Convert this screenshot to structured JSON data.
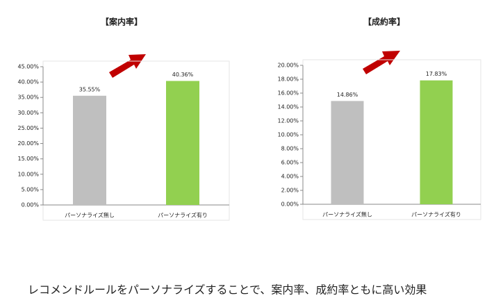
{
  "chart_data": [
    {
      "type": "bar",
      "title": "【案内率】",
      "categories": [
        "パーソナライズ無し",
        "パーソナライズ有り"
      ],
      "values": [
        35.55,
        40.36
      ],
      "value_labels": [
        "35.55%",
        "40.36%"
      ],
      "colors": [
        "#bfbfbf",
        "#92d050"
      ],
      "ylim": [
        0,
        45
      ],
      "yticks": [
        {
          "value": 0,
          "label": "0.00%"
        },
        {
          "value": 5,
          "label": "5.00%"
        },
        {
          "value": 10,
          "label": "10.00%"
        },
        {
          "value": 15,
          "label": "15.00%"
        },
        {
          "value": 20,
          "label": "20.00%"
        },
        {
          "value": 25,
          "label": "25.00%"
        },
        {
          "value": 30,
          "label": "30.00%"
        },
        {
          "value": 35,
          "label": "35.00%"
        },
        {
          "value": 40,
          "label": "40.00%"
        },
        {
          "value": 45,
          "label": "45.00%"
        }
      ]
    },
    {
      "type": "bar",
      "title": "【成約率】",
      "categories": [
        "パーソナライズ無し",
        "パーソナライズ有り"
      ],
      "values": [
        14.86,
        17.83
      ],
      "value_labels": [
        "14.86%",
        "17.83%"
      ],
      "colors": [
        "#bfbfbf",
        "#92d050"
      ],
      "ylim": [
        0,
        20
      ],
      "yticks": [
        {
          "value": 0,
          "label": "0.00%"
        },
        {
          "value": 2,
          "label": "2.00%"
        },
        {
          "value": 4,
          "label": "4.00%"
        },
        {
          "value": 6,
          "label": "6.00%"
        },
        {
          "value": 8,
          "label": "8.00%"
        },
        {
          "value": 10,
          "label": "10.00%"
        },
        {
          "value": 12,
          "label": "12.00%"
        },
        {
          "value": 14,
          "label": "14.00%"
        },
        {
          "value": 16,
          "label": "16.00%"
        },
        {
          "value": 18,
          "label": "18.00%"
        },
        {
          "value": 20,
          "label": "20.00%"
        }
      ]
    }
  ],
  "caption": "レコメンドルールをパーソナライズすることで、案内率、成約率ともに高い効果"
}
